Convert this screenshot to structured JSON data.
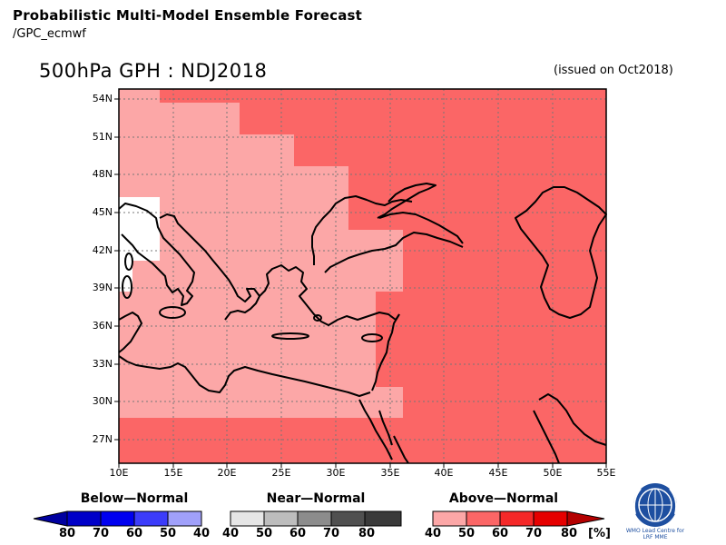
{
  "header": {
    "title": "Probabilistic Multi-Model Ensemble Forecast",
    "subtitle": "/GPC_ecmwf"
  },
  "map": {
    "title": "500hPa GPH : NDJ2018",
    "issued": "(issued on Oct2018)",
    "lat_labels": [
      "54N",
      "51N",
      "48N",
      "45N",
      "42N",
      "39N",
      "36N",
      "33N",
      "30N",
      "27N"
    ],
    "lon_labels": [
      "10E",
      "15E",
      "20E",
      "25E",
      "30E",
      "35E",
      "40E",
      "45E",
      "50E",
      "55E"
    ],
    "category": "Above-Normal",
    "regions": [
      {
        "label": "Above-Normal 40-50",
        "color": "#fca7a7"
      },
      {
        "label": "Above-Normal 50-60",
        "color": "#fb6666"
      }
    ]
  },
  "legend": {
    "below": {
      "title": "Below—Normal",
      "ticks": [
        "80",
        "70",
        "60",
        "50",
        "40"
      ],
      "colors": [
        "#0000c8",
        "#0000f0",
        "#3c3cfa",
        "#a0a0fa"
      ]
    },
    "near": {
      "title": "Near—Normal",
      "ticks": [
        "40",
        "50",
        "60",
        "70",
        "80"
      ],
      "colors": [
        "#e6e6e6",
        "#bdbdbd",
        "#8c8c8c",
        "#505050"
      ]
    },
    "above": {
      "title": "Above—Normal",
      "ticks": [
        "40",
        "50",
        "60",
        "70",
        "80"
      ],
      "colors": [
        "#fca7a7",
        "#fb6666",
        "#f52828",
        "#e60000"
      ]
    },
    "unit": "[%]"
  },
  "logo": {
    "line1": "WMO Lead Centre for",
    "line2": "LRF MME"
  }
}
